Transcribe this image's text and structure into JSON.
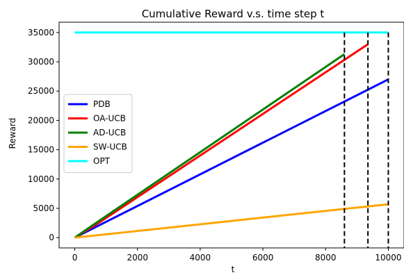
{
  "chart_data": {
    "type": "line",
    "title": "Cumulative Reward v.s. time step t",
    "xlabel": "t",
    "ylabel": "Reward",
    "xlim": [
      -500,
      10500
    ],
    "ylim": [
      -1750,
      36750
    ],
    "xticks": [
      0,
      2000,
      4000,
      6000,
      8000,
      10000
    ],
    "yticks": [
      0,
      5000,
      10000,
      15000,
      20000,
      25000,
      30000,
      35000
    ],
    "xtick_labels": [
      "0",
      "2000",
      "4000",
      "6000",
      "8000",
      "10000"
    ],
    "ytick_labels": [
      "0",
      "5000",
      "10000",
      "15000",
      "20000",
      "25000",
      "30000",
      "35000"
    ],
    "grid": false,
    "legend_position": "center-left",
    "series": [
      {
        "name": "PDB",
        "color": "#0000ff",
        "x": [
          0,
          10000
        ],
        "y": [
          0,
          27000
        ]
      },
      {
        "name": "OA-UCB",
        "color": "#ff0000",
        "x": [
          0,
          700,
          9350
        ],
        "y": [
          0,
          2300,
          33000
        ]
      },
      {
        "name": "AD-UCB",
        "color": "#008000",
        "x": [
          0,
          700,
          8600
        ],
        "y": [
          0,
          2600,
          31300
        ]
      },
      {
        "name": "SW-UCB",
        "color": "#ffa500",
        "x": [
          0,
          10000
        ],
        "y": [
          0,
          5700
        ]
      },
      {
        "name": "OPT",
        "color": "#00ffff",
        "x": [
          0,
          10000
        ],
        "y": [
          35000,
          35000
        ]
      }
    ],
    "vertical_lines": [
      {
        "x": 8600,
        "style": "dashed",
        "color": "#000000"
      },
      {
        "x": 9350,
        "style": "dashed",
        "color": "#000000"
      },
      {
        "x": 10000,
        "style": "dashed",
        "color": "#000000"
      }
    ]
  }
}
